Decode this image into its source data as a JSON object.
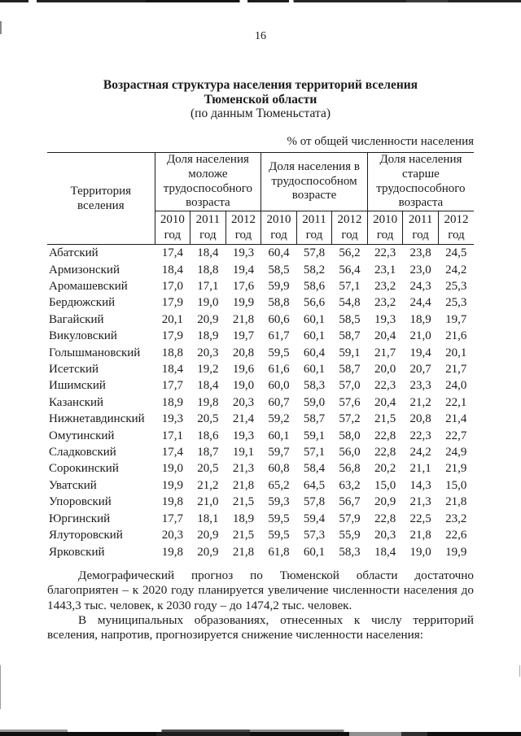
{
  "colors": {
    "text": "#1b1b1b",
    "background": "#ffffff",
    "scan_edge": "#0f0f0f"
  },
  "page": {
    "number": "16",
    "title_line1": "Возрастная структура населения территорий вселения",
    "title_line2": "Тюменской области",
    "title_line3": "(по данным Тюменьстата)",
    "units_note": "% от общей численности населения"
  },
  "table": {
    "territory_header": "Территория\nвселения",
    "groups": [
      {
        "label": "Доля населения\nмоложе\nтрудоспособного\nвозраста"
      },
      {
        "label": "Доля населения в\nтрудоспособном\nвозрасте"
      },
      {
        "label": "Доля населения\nстарше\nтрудоспособного\nвозраста"
      }
    ],
    "years": [
      "2010",
      "2011",
      "2012"
    ],
    "year_suffix": "год",
    "rows": [
      {
        "territory": "Абатский",
        "values": [
          "17,4",
          "18,4",
          "19,3",
          "60,4",
          "57,8",
          "56,2",
          "22,3",
          "23,8",
          "24,5"
        ]
      },
      {
        "territory": "Армизонский",
        "values": [
          "18,4",
          "18,8",
          "19,4",
          "58,5",
          "58,2",
          "56,4",
          "23,1",
          "23,0",
          "24,2"
        ]
      },
      {
        "territory": "Аромашевский",
        "values": [
          "17,0",
          "17,1",
          "17,6",
          "59,9",
          "58,6",
          "57,1",
          "23,2",
          "24,3",
          "25,3"
        ]
      },
      {
        "territory": "Бердюжский",
        "values": [
          "17,9",
          "19,0",
          "19,9",
          "58,8",
          "56,6",
          "54,8",
          "23,2",
          "24,4",
          "25,3"
        ]
      },
      {
        "territory": "Вагайский",
        "values": [
          "20,1",
          "20,9",
          "21,8",
          "60,6",
          "60,1",
          "58,5",
          "19,3",
          "18,9",
          "19,7"
        ]
      },
      {
        "territory": "Викуловский",
        "values": [
          "17,9",
          "18,9",
          "19,7",
          "61,7",
          "60,1",
          "58,7",
          "20,4",
          "21,0",
          "21,6"
        ]
      },
      {
        "territory": "Голышмановский",
        "values": [
          "18,8",
          "20,3",
          "20,8",
          "59,5",
          "60,4",
          "59,1",
          "21,7",
          "19,4",
          "20,1"
        ]
      },
      {
        "territory": "Исетский",
        "values": [
          "18,4",
          "19,2",
          "19,6",
          "61,6",
          "60,1",
          "58,7",
          "20,0",
          "20,7",
          "21,7"
        ]
      },
      {
        "territory": "Ишимский",
        "values": [
          "17,7",
          "18,4",
          "19,0",
          "60,0",
          "58,3",
          "57,0",
          "22,3",
          "23,3",
          "24,0"
        ]
      },
      {
        "territory": "Казанский",
        "values": [
          "18,9",
          "19,8",
          "20,3",
          "60,7",
          "59,0",
          "57,6",
          "20,4",
          "21,2",
          "22,1"
        ]
      },
      {
        "territory": "Нижнетавдинский",
        "values": [
          "19,3",
          "20,5",
          "21,4",
          "59,2",
          "58,7",
          "57,2",
          "21,5",
          "20,8",
          "21,4"
        ]
      },
      {
        "territory": "Омутинский",
        "values": [
          "17,1",
          "18,6",
          "19,3",
          "60,1",
          "59,1",
          "58,0",
          "22,8",
          "22,3",
          "22,7"
        ]
      },
      {
        "territory": "Сладковский",
        "values": [
          "17,4",
          "18,7",
          "19,1",
          "59,7",
          "57,1",
          "56,0",
          "22,8",
          "24,2",
          "24,9"
        ]
      },
      {
        "territory": "Сорокинский",
        "values": [
          "19,0",
          "20,5",
          "21,3",
          "60,8",
          "58,4",
          "56,8",
          "20,2",
          "21,1",
          "21,9"
        ]
      },
      {
        "territory": "Уватский",
        "values": [
          "19,9",
          "21,2",
          "21,8",
          "65,2",
          "64,5",
          "63,2",
          "15,0",
          "14,3",
          "15,0"
        ]
      },
      {
        "territory": "Упоровский",
        "values": [
          "19,8",
          "21,0",
          "21,5",
          "59,3",
          "57,8",
          "56,7",
          "20,9",
          "21,3",
          "21,8"
        ]
      },
      {
        "territory": "Юргинский",
        "values": [
          "17,7",
          "18,1",
          "18,9",
          "59,5",
          "59,4",
          "57,9",
          "22,8",
          "22,5",
          "23,2"
        ]
      },
      {
        "territory": "Ялуторовский",
        "values": [
          "20,3",
          "20,9",
          "21,5",
          "59,5",
          "57,3",
          "55,9",
          "20,3",
          "21,8",
          "22,6"
        ]
      },
      {
        "territory": "Ярковский",
        "values": [
          "19,8",
          "20,9",
          "21,8",
          "61,8",
          "60,1",
          "58,3",
          "18,4",
          "19,0",
          "19,9"
        ]
      }
    ]
  },
  "paragraphs": [
    "Демографический прогноз по Тюменской области достаточно благоприятен – к 2020 году планируется увеличение численности населения до 1443,3 тыс. человек, к 2030 году – до 1474,2 тыс. человек.",
    "В муниципальных образованиях, отнесенных к числу территорий вселения, напротив, прогнозируется снижение численности населения:"
  ]
}
